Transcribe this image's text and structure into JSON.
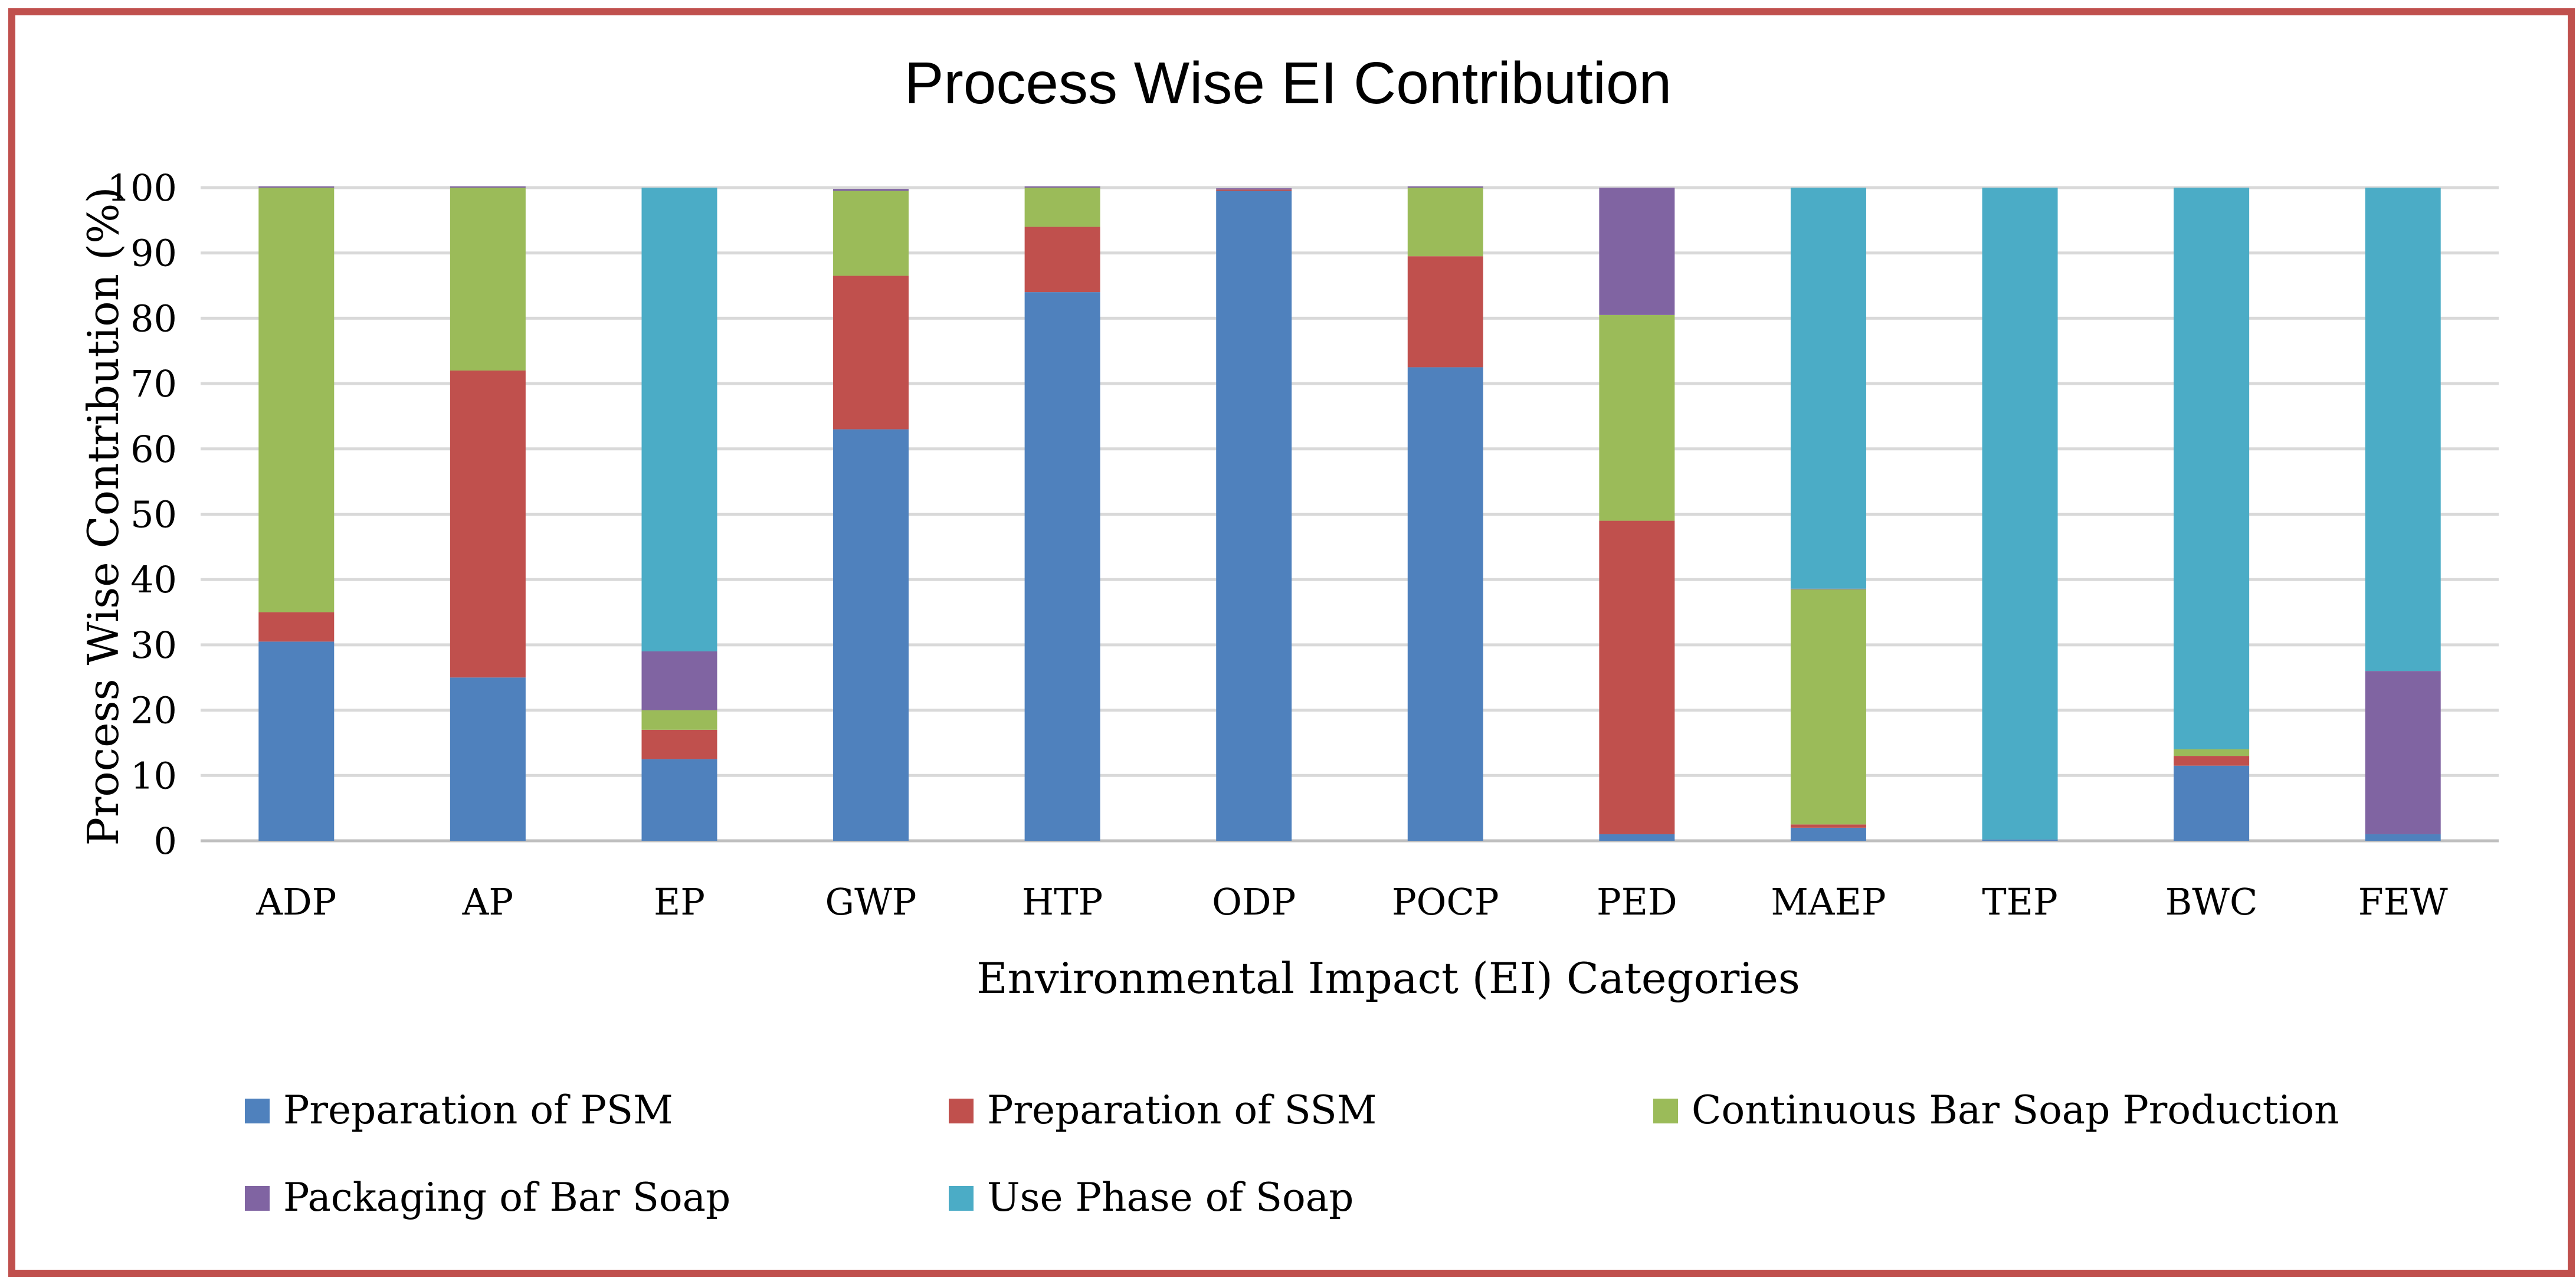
{
  "chart_data": {
    "type": "bar",
    "stacked": true,
    "title": "Process Wise EI Contribution",
    "xlabel": "Environmental Impact (EI) Categories",
    "ylabel": "Process Wise Contribution (%)",
    "ylim": [
      0,
      100
    ],
    "yticks": [
      "0",
      "10",
      "20",
      "30",
      "40",
      "50",
      "60",
      "70",
      "80",
      "90",
      "100"
    ],
    "grid": true,
    "legend_position": "bottom",
    "categories": [
      "ADP",
      "AP",
      "EP",
      "GWP",
      "HTP",
      "ODP",
      "POCP",
      "PED",
      "MAEP",
      "TEP",
      "BWC",
      "FEW"
    ],
    "series": [
      {
        "name": "Preparation of PSM",
        "color": "#4f81bd",
        "values": [
          30.5,
          25,
          12.5,
          63,
          84,
          99.5,
          72.5,
          1,
          2,
          0.2,
          11.5,
          1
        ]
      },
      {
        "name": "Preparation of SSM",
        "color": "#c0504d",
        "values": [
          4.5,
          47,
          4.5,
          23.5,
          10,
          0.2,
          17,
          48,
          0.5,
          0,
          1.5,
          0
        ]
      },
      {
        "name": "Continuous Bar Soap Production",
        "color": "#9bbb59",
        "values": [
          65,
          28,
          3,
          13,
          6,
          0,
          10.5,
          31.5,
          36,
          0,
          1,
          0
        ]
      },
      {
        "name": "Packaging of Bar Soap",
        "color": "#8064a2",
        "values": [
          0.2,
          0.2,
          9,
          0.3,
          0.2,
          0.2,
          0.2,
          19.5,
          0.1,
          0,
          0,
          25
        ]
      },
      {
        "name": "Use Phase of Soap",
        "color": "#4bacc6",
        "values": [
          0,
          0,
          71,
          0,
          0,
          0,
          0,
          0,
          61.4,
          99.8,
          86,
          74
        ]
      }
    ]
  }
}
